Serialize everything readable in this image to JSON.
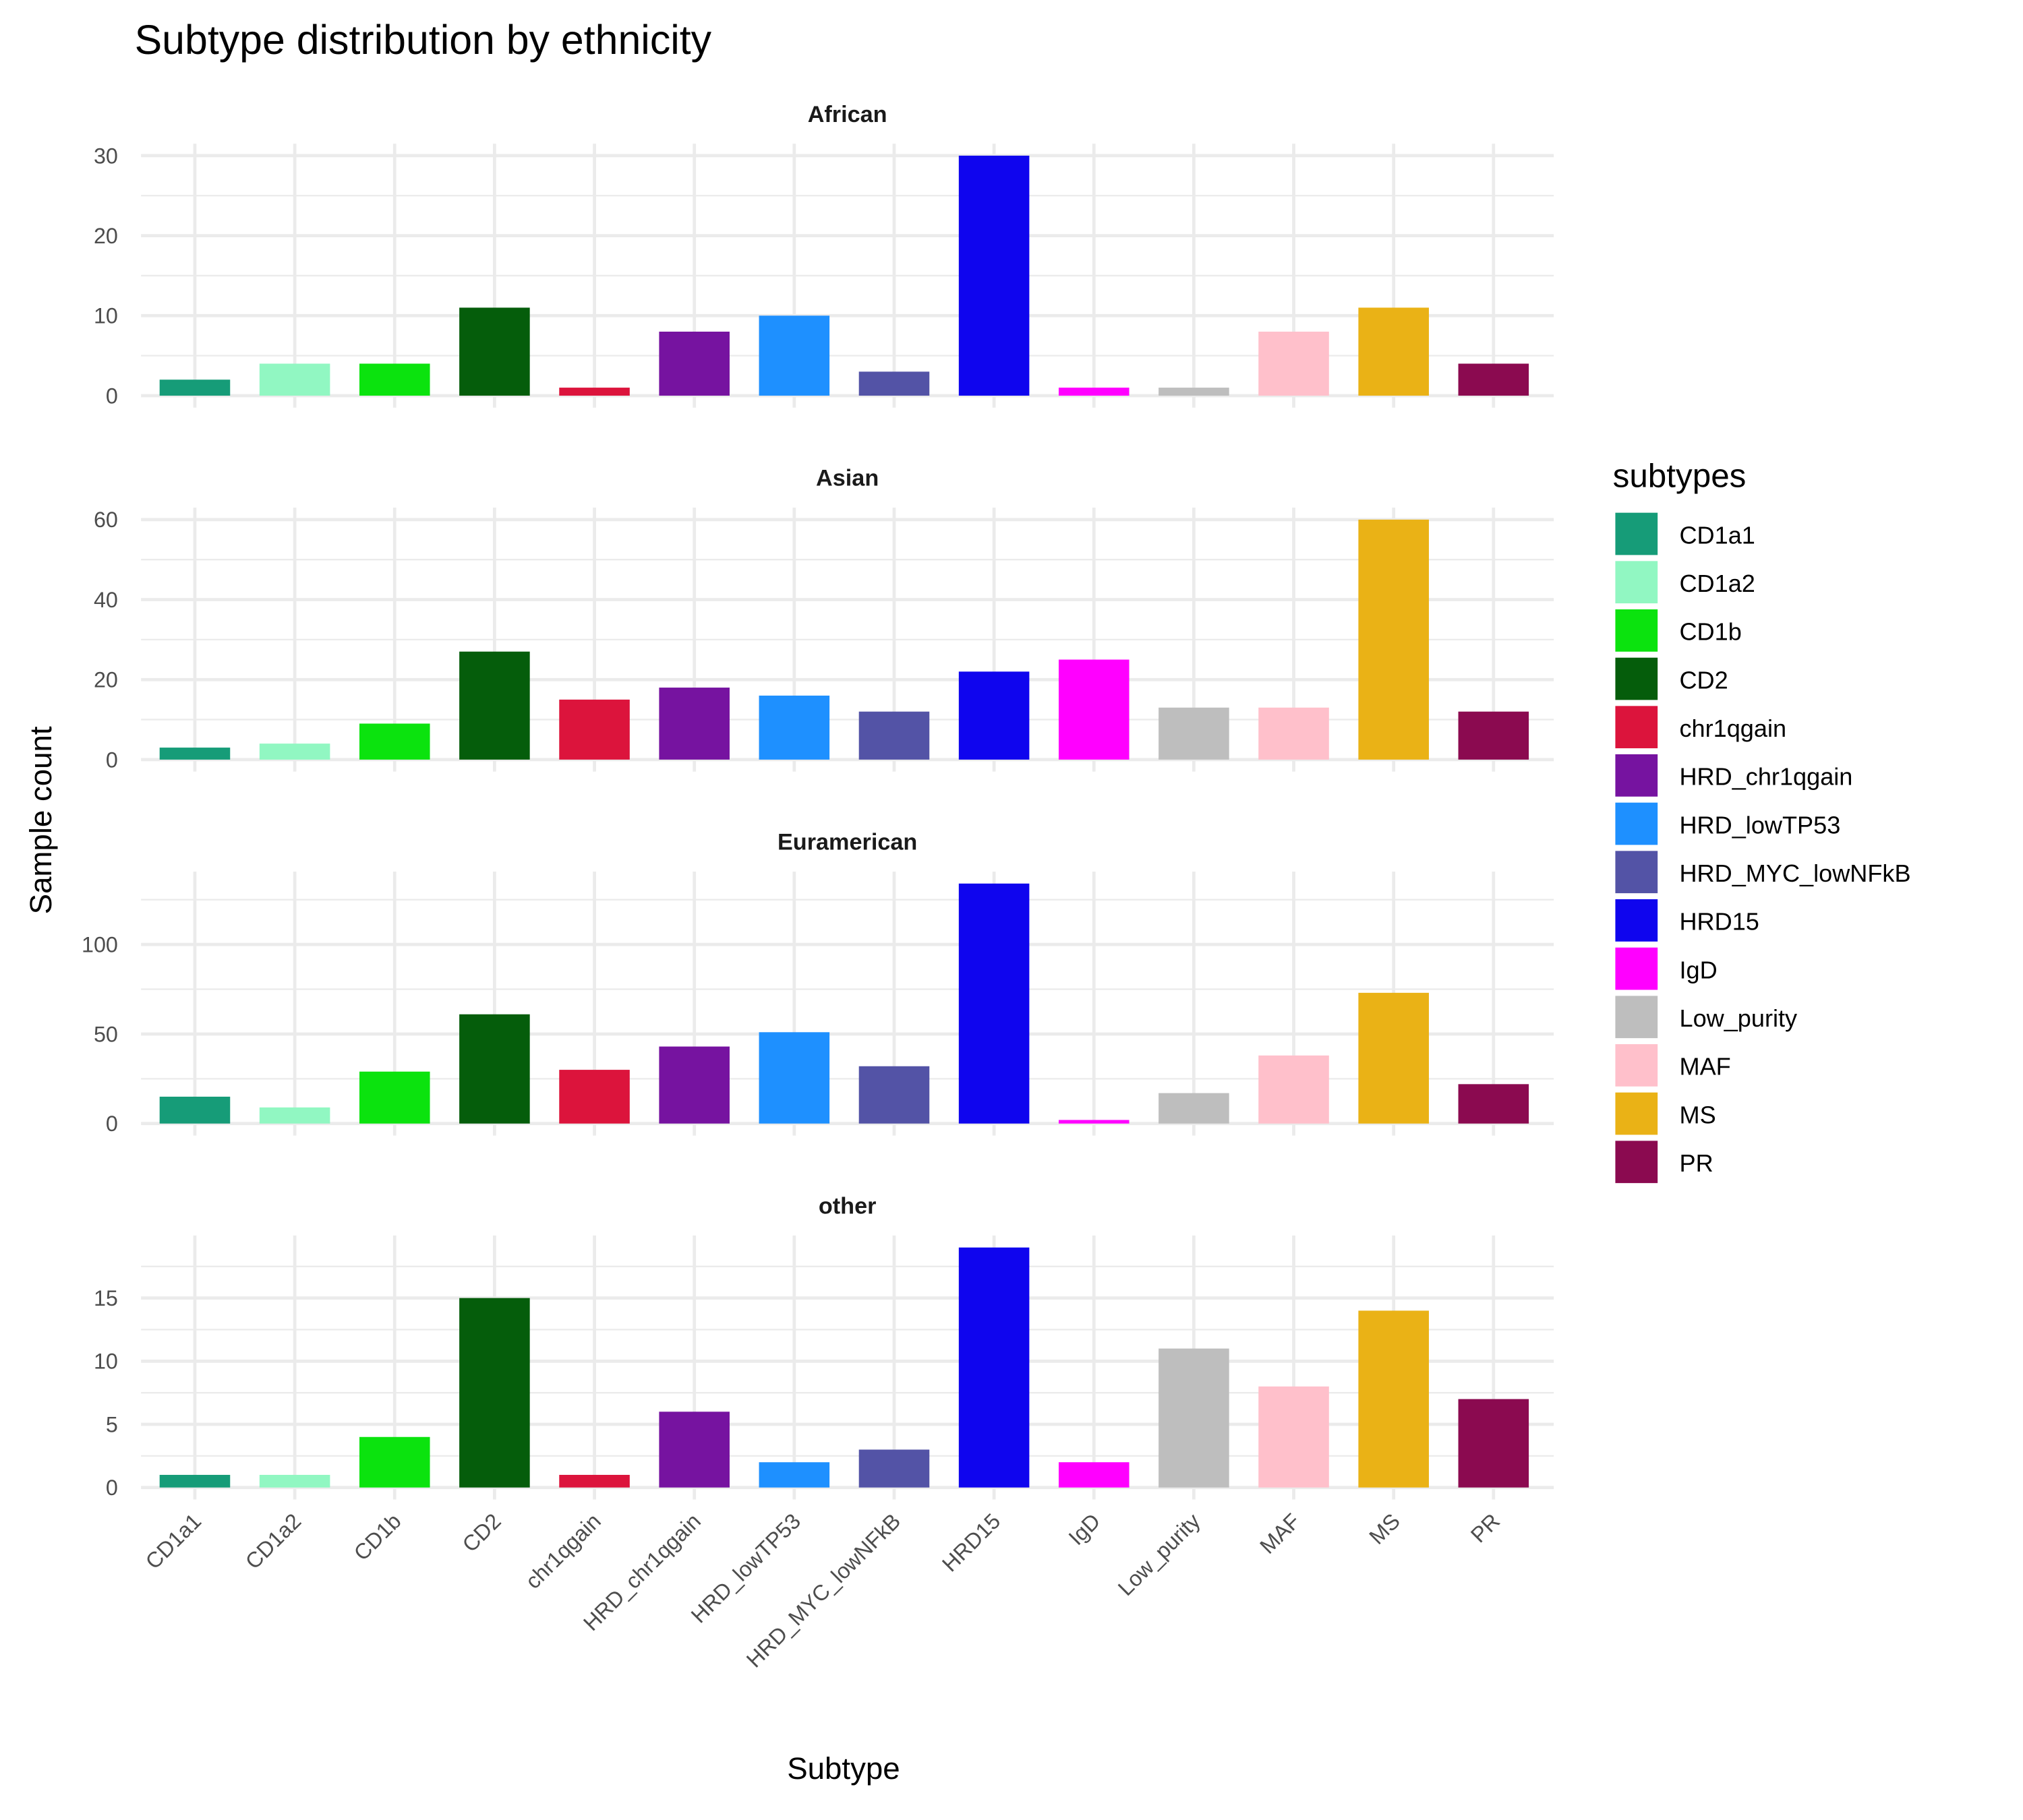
{
  "chart_data": {
    "type": "bar",
    "title": "Subtype distribution by ethnicity",
    "x_label": "Subtype",
    "y_label": "Sample count",
    "legend_title": "subtypes",
    "legend_position": "right",
    "grid": true,
    "categories": [
      "CD1a1",
      "CD1a2",
      "CD1b",
      "CD2",
      "chr1qgain",
      "HRD_chr1qgain",
      "HRD_lowTP53",
      "HRD_MYC_lowNFkB",
      "HRD15",
      "IgD",
      "Low_purity",
      "MAF",
      "MS",
      "PR"
    ],
    "colors": [
      "#169C78",
      "#91F7C2",
      "#0BE30E",
      "#055D0B",
      "#DC143C",
      "#7613A0",
      "#1E90FF",
      "#5353A6",
      "#0F05EE",
      "#FF00FF",
      "#BEBEBE",
      "#FFC0CB",
      "#EAB216",
      "#8B0A50"
    ],
    "facets": [
      {
        "name": "African",
        "values": [
          2,
          4,
          4,
          11,
          1,
          8,
          10,
          3,
          30,
          1,
          1,
          8,
          11,
          4
        ],
        "ylim": [
          -1.5,
          31.5
        ],
        "yticks": [
          0,
          10,
          20,
          30
        ]
      },
      {
        "name": "Asian",
        "values": [
          3,
          4,
          9,
          27,
          15,
          18,
          16,
          12,
          22,
          25,
          13,
          13,
          60,
          12
        ],
        "ylim": [
          -3,
          63
        ],
        "yticks": [
          0,
          20,
          40,
          60
        ]
      },
      {
        "name": "Euramerican",
        "values": [
          15,
          9,
          29,
          61,
          30,
          43,
          51,
          32,
          134,
          2,
          17,
          38,
          73,
          22
        ],
        "ylim": [
          -6.7,
          140.7
        ],
        "yticks": [
          0,
          50,
          100
        ]
      },
      {
        "name": "other",
        "values": [
          1,
          1,
          4,
          15,
          1,
          6,
          2,
          3,
          19,
          2,
          11,
          8,
          14,
          7
        ],
        "ylim": [
          -0.95,
          19.95
        ],
        "yticks": [
          0,
          5,
          10,
          15
        ]
      }
    ]
  }
}
